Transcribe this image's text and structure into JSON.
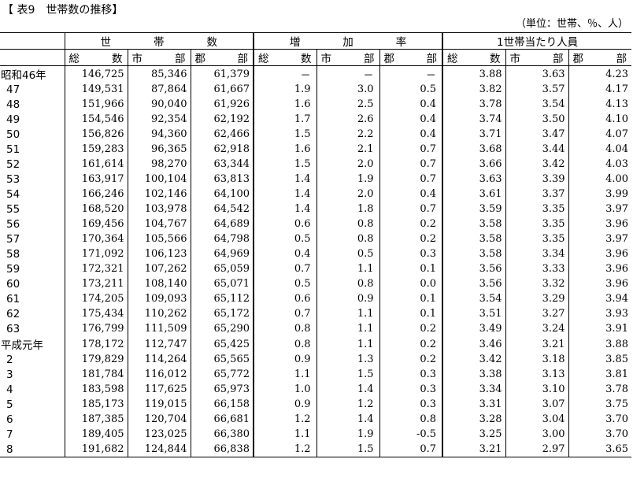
{
  "title": "【 表9　世帯数の推移】",
  "unit": "（単位：世帯、％、人）",
  "groups": {
    "households": [
      "世",
      "帯",
      "数"
    ],
    "growth": [
      "増",
      "加",
      "率"
    ],
    "persons": "1世帯当たり人員"
  },
  "subheads": [
    [
      "総",
      "数"
    ],
    [
      "市",
      "部"
    ],
    [
      "郡",
      "部"
    ],
    [
      "総",
      "数"
    ],
    [
      "市",
      "部"
    ],
    [
      "郡",
      "部"
    ],
    [
      "総",
      "数"
    ],
    [
      "市",
      "部"
    ],
    [
      "郡",
      "部"
    ]
  ],
  "rows": [
    [
      "昭和46年",
      "146,725",
      "85,346",
      "61,379",
      "－",
      "－",
      "－",
      "3.88",
      "3.63",
      "4.23"
    ],
    [
      "47",
      "149,531",
      "87,864",
      "61,667",
      "1.9",
      "3.0",
      "0.5",
      "3.82",
      "3.57",
      "4.17"
    ],
    [
      "48",
      "151,966",
      "90,040",
      "61,926",
      "1.6",
      "2.5",
      "0.4",
      "3.78",
      "3.54",
      "4.13"
    ],
    [
      "49",
      "154,546",
      "92,354",
      "62,192",
      "1.7",
      "2.6",
      "0.4",
      "3.74",
      "3.50",
      "4.10"
    ],
    [
      "50",
      "156,826",
      "94,360",
      "62,466",
      "1.5",
      "2.2",
      "0.4",
      "3.71",
      "3.47",
      "4.07"
    ],
    [
      "51",
      "159,283",
      "96,365",
      "62,918",
      "1.6",
      "2.1",
      "0.7",
      "3.68",
      "3.44",
      "4.04"
    ],
    [
      "52",
      "161,614",
      "98,270",
      "63,344",
      "1.5",
      "2.0",
      "0.7",
      "3.66",
      "3.42",
      "4.03"
    ],
    [
      "53",
      "163,917",
      "100,104",
      "63,813",
      "1.4",
      "1.9",
      "0.7",
      "3.63",
      "3.39",
      "4.00"
    ],
    [
      "54",
      "166,246",
      "102,146",
      "64,100",
      "1.4",
      "2.0",
      "0.4",
      "3.61",
      "3.37",
      "3.99"
    ],
    [
      "55",
      "168,520",
      "103,978",
      "64,542",
      "1.4",
      "1.8",
      "0.7",
      "3.59",
      "3.35",
      "3.97"
    ],
    [
      "56",
      "169,456",
      "104,767",
      "64,689",
      "0.6",
      "0.8",
      "0.2",
      "3.58",
      "3.35",
      "3.96"
    ],
    [
      "57",
      "170,364",
      "105,566",
      "64,798",
      "0.5",
      "0.8",
      "0.2",
      "3.58",
      "3.35",
      "3.97"
    ],
    [
      "58",
      "171,092",
      "106,123",
      "64,969",
      "0.4",
      "0.5",
      "0.3",
      "3.58",
      "3.34",
      "3.96"
    ],
    [
      "59",
      "172,321",
      "107,262",
      "65,059",
      "0.7",
      "1.1",
      "0.1",
      "3.56",
      "3.33",
      "3.96"
    ],
    [
      "60",
      "173,211",
      "108,140",
      "65,071",
      "0.5",
      "0.8",
      "0.0",
      "3.56",
      "3.32",
      "3.96"
    ],
    [
      "61",
      "174,205",
      "109,093",
      "65,112",
      "0.6",
      "0.9",
      "0.1",
      "3.54",
      "3.29",
      "3.94"
    ],
    [
      "62",
      "175,434",
      "110,262",
      "65,172",
      "0.7",
      "1.1",
      "0.1",
      "3.51",
      "3.27",
      "3.93"
    ],
    [
      "63",
      "176,799",
      "111,509",
      "65,290",
      "0.8",
      "1.1",
      "0.2",
      "3.49",
      "3.24",
      "3.91"
    ],
    [
      "平成元年",
      "178,172",
      "112,747",
      "65,425",
      "0.8",
      "1.1",
      "0.2",
      "3.46",
      "3.21",
      "3.88"
    ],
    [
      "2",
      "179,829",
      "114,264",
      "65,565",
      "0.9",
      "1.3",
      "0.2",
      "3.42",
      "3.18",
      "3.85"
    ],
    [
      "3",
      "181,784",
      "116,012",
      "65,772",
      "1.1",
      "1.5",
      "0.3",
      "3.38",
      "3.13",
      "3.81"
    ],
    [
      "4",
      "183,598",
      "117,625",
      "65,973",
      "1.0",
      "1.4",
      "0.3",
      "3.34",
      "3.10",
      "3.78"
    ],
    [
      "5",
      "185,173",
      "119,015",
      "66,158",
      "0.9",
      "1.2",
      "0.3",
      "3.31",
      "3.07",
      "3.75"
    ],
    [
      "6",
      "187,385",
      "120,704",
      "66,681",
      "1.2",
      "1.4",
      "0.8",
      "3.28",
      "3.04",
      "3.70"
    ],
    [
      "7",
      "189,405",
      "123,025",
      "66,380",
      "1.1",
      "1.9",
      "-0.5",
      "3.25",
      "3.00",
      "3.70"
    ],
    [
      "8",
      "191,682",
      "124,844",
      "66,838",
      "1.2",
      "1.5",
      "0.7",
      "3.21",
      "2.97",
      "3.65"
    ]
  ]
}
